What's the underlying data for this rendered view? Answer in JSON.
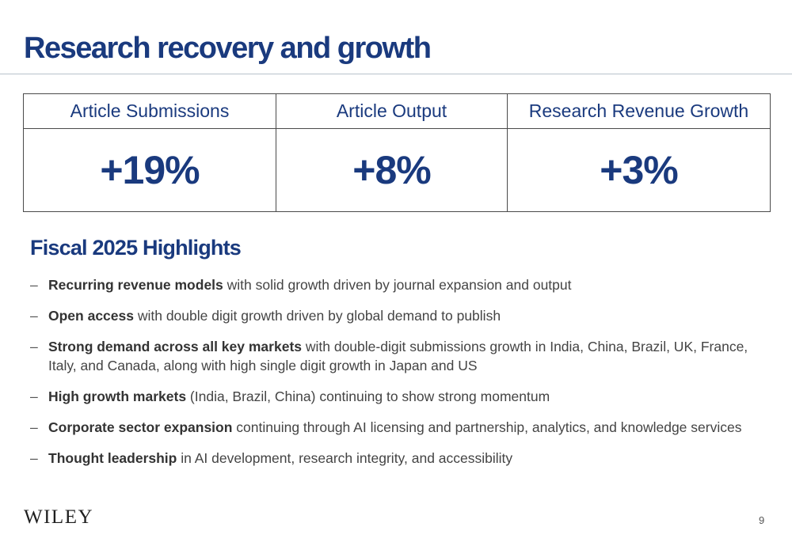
{
  "slide": {
    "title": "Research recovery and growth"
  },
  "kpis": [
    {
      "label": "Article Submissions",
      "value": "+19%"
    },
    {
      "label": "Article Output",
      "value": "+8%"
    },
    {
      "label": "Research Revenue Growth",
      "value": "+3%"
    }
  ],
  "highlights": {
    "heading": "Fiscal 2025 Highlights",
    "dash": "–",
    "items": [
      {
        "bold": "Recurring revenue models",
        "text": " with solid growth driven by journal expansion and output"
      },
      {
        "bold": "Open access",
        "text": " with double digit growth driven by global demand to publish"
      },
      {
        "bold": "Strong demand across all key markets",
        "text": " with double-digit submissions growth in India, China, Brazil, UK, France, Italy, and Canada, along with high single digit growth in Japan and US"
      },
      {
        "bold": "High growth markets",
        "text": " (India, Brazil, China) continuing to show strong momentum"
      },
      {
        "bold": "Corporate sector expansion",
        "text": " continuing through AI licensing and partnership, analytics, and knowledge services"
      },
      {
        "bold": "Thought leadership",
        "text": " in AI development, research integrity, and accessibility"
      }
    ]
  },
  "footer": {
    "logo": "WILEY",
    "page_number": "9"
  }
}
